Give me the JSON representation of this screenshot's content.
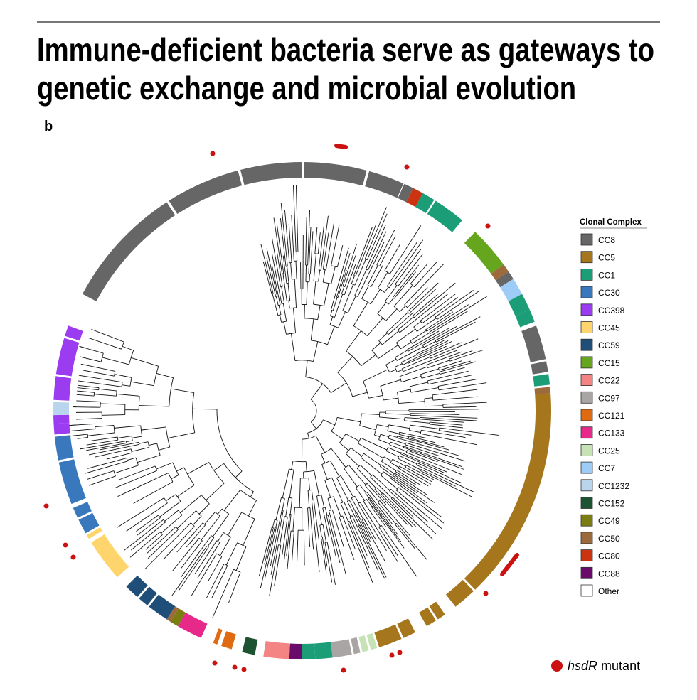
{
  "header": {
    "title_line1": "Immune-deficient bacteria serve as gateways to",
    "title_line2": "genetic exchange and microbial evolution"
  },
  "panel_label": "b",
  "legend": {
    "title": "Clonal Complex",
    "items": [
      {
        "label": "CC8",
        "color": "#666666"
      },
      {
        "label": "CC5",
        "color": "#a6761d"
      },
      {
        "label": "CC1",
        "color": "#1b9e77"
      },
      {
        "label": "CC30",
        "color": "#3a78bd"
      },
      {
        "label": "CC398",
        "color": "#9b3cf0"
      },
      {
        "label": "CC45",
        "color": "#fdd56c"
      },
      {
        "label": "CC59",
        "color": "#1f4e79"
      },
      {
        "label": "CC15",
        "color": "#66a61e"
      },
      {
        "label": "CC22",
        "color": "#f48484"
      },
      {
        "label": "CC97",
        "color": "#aaa5a5"
      },
      {
        "label": "CC121",
        "color": "#e06a12"
      },
      {
        "label": "CC133",
        "color": "#e7298a"
      },
      {
        "label": "CC25",
        "color": "#c7e3b5"
      },
      {
        "label": "CC7",
        "color": "#9dcdf7"
      },
      {
        "label": "CC1232",
        "color": "#b9d5ee"
      },
      {
        "label": "CC152",
        "color": "#1d5233"
      },
      {
        "label": "CC49",
        "color": "#7b7d12"
      },
      {
        "label": "CC50",
        "color": "#9c6a3b"
      },
      {
        "label": "CC80",
        "color": "#cc3311"
      },
      {
        "label": "CC88",
        "color": "#6a0a6a"
      },
      {
        "label": "Other",
        "color": "#ffffff"
      }
    ],
    "mutant_italic": "hsdR",
    "mutant_text": "mutant",
    "mutant_color": "#cc1111"
  }
}
